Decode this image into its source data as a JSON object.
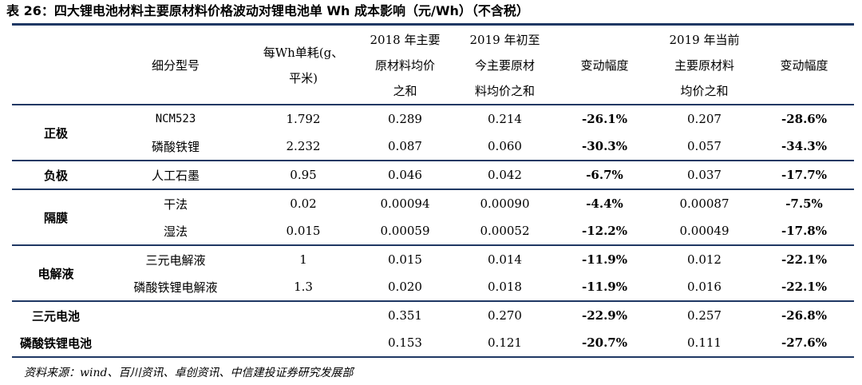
{
  "title": "表 26：四大锂电池材料主要原材料价格波动对锂电池单 Wh 成本影响（元/Wh）（不含税）",
  "headers": {
    "sub_type": "细分型号",
    "unit_consumption": [
      "每Wh单耗(g、",
      "平米)"
    ],
    "price_2018": [
      "2018 年主要",
      "原材料均价",
      "之和"
    ],
    "price_2019_ytd": [
      "2019 年初至",
      "今主要原材",
      "料均价之和"
    ],
    "change_1": "变动幅度",
    "price_2019_now": [
      "2019 年当前",
      "主要原材料",
      "均价之和"
    ],
    "change_2": "变动幅度"
  },
  "groups": [
    {
      "category": "正极",
      "rows": [
        {
          "sub": "NCM523",
          "unit": "1.792",
          "p2018": "0.289",
          "p2019": "0.214",
          "chg1": "-26.1%",
          "pnow": "0.207",
          "chg2": "-28.6%"
        },
        {
          "sub": "磷酸铁锂",
          "unit": "2.232",
          "p2018": "0.087",
          "p2019": "0.060",
          "chg1": "-30.3%",
          "pnow": "0.057",
          "chg2": "-34.3%"
        }
      ]
    },
    {
      "category": "负极",
      "rows": [
        {
          "sub": "人工石墨",
          "unit": "0.95",
          "p2018": "0.046",
          "p2019": "0.042",
          "chg1": "-6.7%",
          "pnow": "0.037",
          "chg2": "-17.7%"
        }
      ]
    },
    {
      "category": "隔膜",
      "rows": [
        {
          "sub": "干法",
          "unit": "0.02",
          "p2018": "0.00094",
          "p2019": "0.00090",
          "chg1": "-4.4%",
          "pnow": "0.00087",
          "chg2": "-7.5%"
        },
        {
          "sub": "湿法",
          "unit": "0.015",
          "p2018": "0.00059",
          "p2019": "0.00052",
          "chg1": "-12.2%",
          "pnow": "0.00049",
          "chg2": "-17.8%"
        }
      ]
    },
    {
      "category": "电解液",
      "rows": [
        {
          "sub": "三元电解液",
          "unit": "1",
          "p2018": "0.015",
          "p2019": "0.014",
          "chg1": "-11.9%",
          "pnow": "0.012",
          "chg2": "-22.1%"
        },
        {
          "sub": "磷酸铁锂电解液",
          "unit": "1.3",
          "p2018": "0.020",
          "p2019": "0.018",
          "chg1": "-11.9%",
          "pnow": "0.016",
          "chg2": "-22.1%"
        }
      ]
    }
  ],
  "totals": [
    {
      "category": "三元电池",
      "p2018": "0.351",
      "p2019": "0.270",
      "chg1": "-22.9%",
      "pnow": "0.257",
      "chg2": "-26.8%"
    },
    {
      "category": "磷酸铁锂电池",
      "p2018": "0.153",
      "p2019": "0.121",
      "chg1": "-20.7%",
      "pnow": "0.111",
      "chg2": "-27.6%"
    }
  ],
  "source": "资料来源：wind、百川资讯、卓创资讯、中信建投证券研究发展部"
}
